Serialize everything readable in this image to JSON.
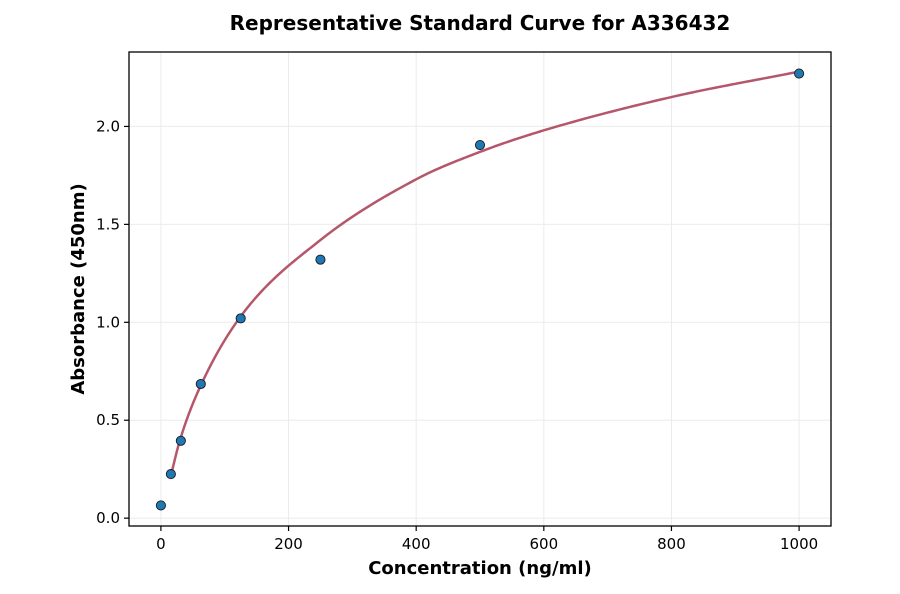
{
  "chart_data": {
    "type": "scatter",
    "title": "Representative Standard Curve for A336432",
    "xlabel": "Concentration (ng/ml)",
    "ylabel": "Absorbance (450nm)",
    "xlim": [
      -50,
      1050
    ],
    "ylim": [
      -0.04,
      2.38
    ],
    "x_ticks": [
      0,
      200,
      400,
      600,
      800,
      1000
    ],
    "y_ticks": [
      0.0,
      0.5,
      1.0,
      1.5,
      2.0
    ],
    "x_tick_labels": [
      "0",
      "200",
      "400",
      "600",
      "800",
      "1000"
    ],
    "y_tick_labels": [
      "0.0",
      "0.5",
      "1.0",
      "1.5",
      "2.0"
    ],
    "grid": true,
    "legend": "none",
    "series": [
      {
        "type": "scatter",
        "color": "#1f77b4",
        "x": [
          0,
          15.6,
          31.25,
          62.5,
          125,
          250,
          500,
          1000
        ],
        "y": [
          0.065,
          0.225,
          0.395,
          0.685,
          1.02,
          1.32,
          1.905,
          2.27
        ]
      },
      {
        "type": "line",
        "color": "#b5576b",
        "x": [
          15,
          30,
          60,
          125,
          250,
          400,
          500,
          600,
          800,
          1000
        ],
        "y": [
          0.21,
          0.4,
          0.66,
          1.03,
          1.42,
          1.73,
          1.87,
          1.98,
          2.15,
          2.28
        ]
      }
    ]
  }
}
